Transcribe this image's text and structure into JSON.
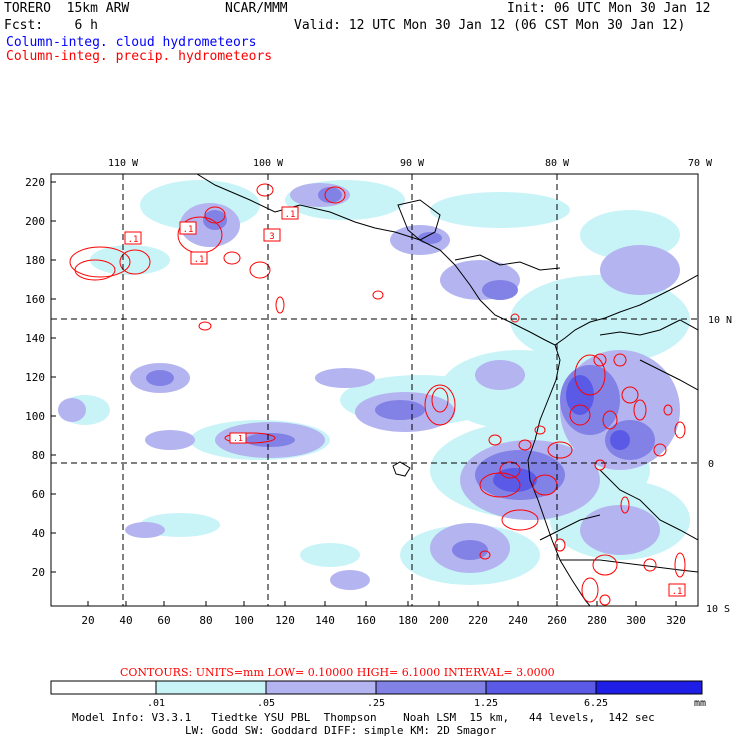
{
  "header": {
    "model": "TORERO  15km ARW",
    "org": "NCAR/MMM",
    "init": "Init: 06 UTC Mon 30 Jan 12",
    "fcst": "Fcst:    6 h",
    "valid": "Valid: 12 UTC Mon 30 Jan 12 (06 CST Mon 30 Jan 12)",
    "field1": "Column-integ. cloud hydrometeors",
    "field2": "Column-integ. precip. hydrometeors"
  },
  "colors": {
    "field1": "#0000ff",
    "field2": "#ff0000",
    "shade_levels": [
      "#ffffff",
      "#c8f4f8",
      "#b4b4f0",
      "#8282e6",
      "#5a5ae6",
      "#1e1ee6"
    ],
    "coast": "#000000"
  },
  "top_longitudes": [
    "110 W",
    "100 W",
    "90 W",
    "80 W",
    "70 W"
  ],
  "right_latitudes": [
    "10 N",
    "0",
    "10 S"
  ],
  "y_grid_labels": [
    "20",
    "40",
    "60",
    "80",
    "100",
    "120",
    "140",
    "160",
    "180",
    "200",
    "220"
  ],
  "x_grid_labels": [
    "20",
    "40",
    "60",
    "80",
    "100",
    "120",
    "140",
    "160",
    "180",
    "200",
    "220",
    "240",
    "260",
    "280",
    "300",
    "320"
  ],
  "contour_labels": [
    ".1",
    ".1",
    ".1",
    ".1",
    "3",
    ".1",
    ".1"
  ],
  "contour_info": "CONTOURS:  UNITS=mm  LOW= 0.10000      HIGH=  6.1000      INTERVAL= 3.0000",
  "colorbar": {
    "labels": [
      ".01",
      ".05",
      ".25",
      "1.25",
      "6.25"
    ],
    "units": "mm"
  },
  "footer": {
    "line1": "Model Info: V3.3.1   Tiedtke YSU PBL  Thompson    Noah LSM  15 km,   44 levels,  142 sec",
    "line2": "LW: Godd SW: Goddard DIFF: simple KM: 2D Smagor"
  }
}
